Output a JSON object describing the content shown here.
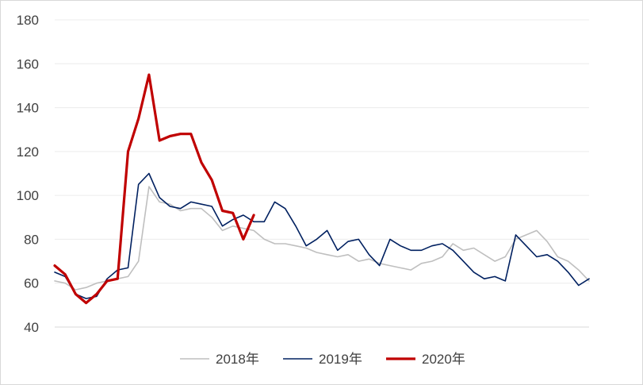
{
  "chart_data": {
    "type": "line",
    "title": "",
    "xlabel": "",
    "ylabel": "",
    "ylim": [
      40,
      180
    ],
    "y_ticks": [
      40,
      60,
      80,
      100,
      120,
      140,
      160,
      180
    ],
    "grid": true,
    "legend_position": "bottom",
    "x_points": 52,
    "series": [
      {
        "name": "2018年",
        "color": "#bfbfbf",
        "values": [
          61,
          60,
          57,
          58,
          60,
          61,
          62,
          63,
          70,
          104,
          97,
          96,
          93,
          94,
          94,
          90,
          84,
          86,
          85,
          84,
          80,
          78,
          78,
          77,
          76,
          74,
          73,
          72,
          73,
          70,
          71,
          69,
          68,
          67,
          66,
          69,
          70,
          72,
          78,
          75,
          76,
          73,
          70,
          72,
          80,
          82,
          84,
          79,
          72,
          70,
          66,
          61
        ]
      },
      {
        "name": "2019年",
        "color": "#002060",
        "values": [
          65,
          63,
          55,
          53,
          54,
          62,
          66,
          67,
          105,
          110,
          99,
          95,
          94,
          97,
          96,
          95,
          86,
          89,
          91,
          88,
          88,
          97,
          94,
          86,
          77,
          80,
          84,
          75,
          79,
          80,
          73,
          68,
          80,
          77,
          75,
          75,
          77,
          78,
          75,
          70,
          65,
          62,
          63,
          61,
          82,
          77,
          72,
          73,
          70,
          65,
          59,
          62
        ]
      },
      {
        "name": "2020年",
        "color": "#c00000",
        "values": [
          68,
          64,
          55,
          51,
          55,
          61,
          62,
          120,
          135,
          155,
          125,
          127,
          128,
          128,
          115,
          107,
          93,
          92,
          80,
          91
        ]
      }
    ]
  }
}
